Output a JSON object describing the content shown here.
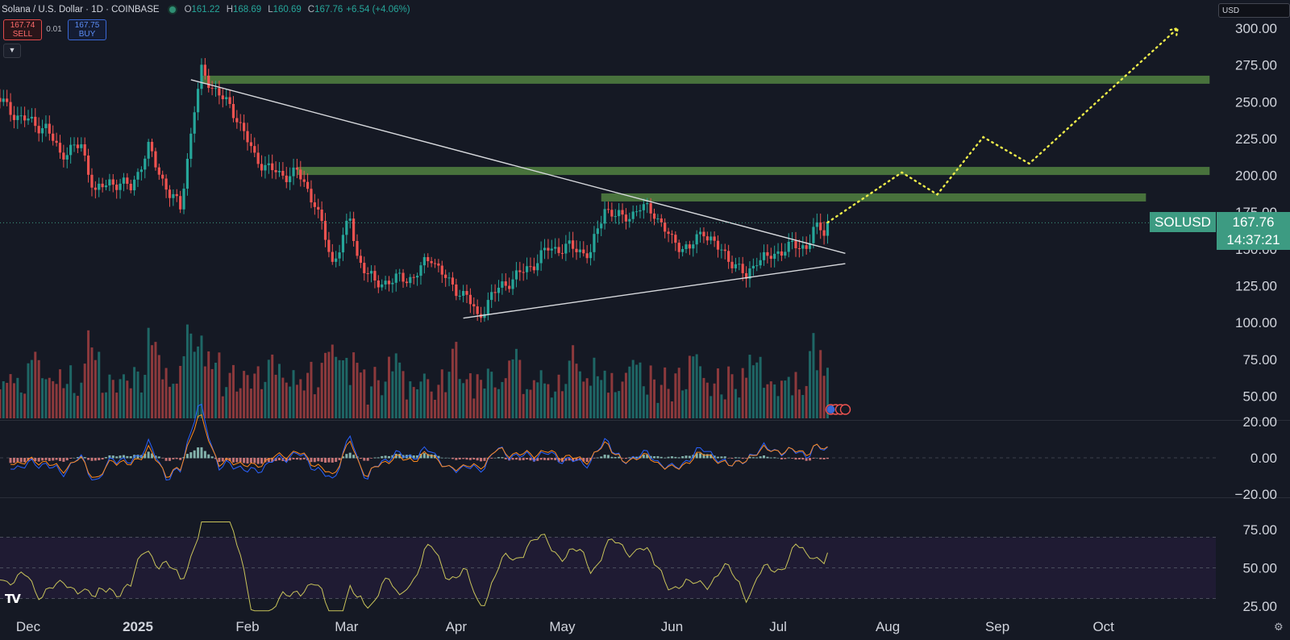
{
  "header": {
    "symbol": "Solana / U.S. Dollar · 1D · COINBASE",
    "o_label": "O",
    "o_value": "161.22",
    "h_label": "H",
    "h_value": "168.69",
    "l_label": "L",
    "l_value": "160.69",
    "c_label": "C",
    "c_value": "167.76",
    "change": "+6.54 (+4.06%)",
    "status_color": "#2f8f74"
  },
  "trade": {
    "sell_price": "167.74",
    "sell_label": "SELL",
    "spread": "0.01",
    "buy_price": "167.75",
    "buy_label": "BUY"
  },
  "toolbar": {
    "currency": "USD",
    "settings_icon": "gear-icon",
    "logo": "tradingview-logo-icon",
    "logo_text": "TV",
    "collapse_icon": "chevron-down-icon"
  },
  "price_badge": {
    "symbol": "SOLUSD",
    "price": "167.76",
    "countdown": "14:37:21",
    "color": "#3d9b82"
  },
  "chart_data": {
    "type": "candlestick",
    "price_axis_labels": [
      "300.00",
      "275.00",
      "250.00",
      "225.00",
      "200.00",
      "175.00",
      "150.00",
      "125.00",
      "100.00",
      "75.00",
      "50.00"
    ],
    "price_axis_values": [
      300,
      275,
      250,
      225,
      200,
      175,
      150,
      125,
      100,
      75,
      50
    ],
    "time_axis_labels": [
      {
        "label": "Dec",
        "date": "2024-12-01"
      },
      {
        "label": "2025",
        "date": "2025-01-01"
      },
      {
        "label": "Feb",
        "date": "2025-02-01"
      },
      {
        "label": "Mar",
        "date": "2025-03-01"
      },
      {
        "label": "Apr",
        "date": "2025-04-01"
      },
      {
        "label": "May",
        "date": "2025-05-01"
      },
      {
        "label": "Jun",
        "date": "2025-06-01"
      },
      {
        "label": "Jul",
        "date": "2025-07-01"
      },
      {
        "label": "Aug",
        "date": "2025-08-01"
      },
      {
        "label": "Sep",
        "date": "2025-09-01"
      },
      {
        "label": "Oct",
        "date": "2025-10-01"
      }
    ],
    "last_price": 167.76,
    "up_color": "#26a69a",
    "down_color": "#ef5350",
    "price_path": [
      [
        "2024-11-21",
        255
      ],
      [
        "2024-11-28",
        240
      ],
      [
        "2024-12-06",
        232
      ],
      [
        "2024-12-10",
        215
      ],
      [
        "2024-12-16",
        220
      ],
      [
        "2024-12-20",
        188
      ],
      [
        "2024-12-24",
        196
      ],
      [
        "2024-12-30",
        192
      ],
      [
        "2025-01-04",
        218
      ],
      [
        "2025-01-10",
        187
      ],
      [
        "2025-01-13",
        178
      ],
      [
        "2025-01-17",
        245
      ],
      [
        "2025-01-19",
        270
      ],
      [
        "2025-01-25",
        252
      ],
      [
        "2025-01-29",
        240
      ],
      [
        "2025-02-03",
        212
      ],
      [
        "2025-02-10",
        200
      ],
      [
        "2025-02-15",
        202
      ],
      [
        "2025-02-20",
        182
      ],
      [
        "2025-02-25",
        140
      ],
      [
        "2025-03-02",
        170
      ],
      [
        "2025-03-04",
        145
      ],
      [
        "2025-03-09",
        126
      ],
      [
        "2025-03-12",
        128
      ],
      [
        "2025-03-20",
        131
      ],
      [
        "2025-03-25",
        145
      ],
      [
        "2025-03-30",
        126
      ],
      [
        "2025-04-04",
        118
      ],
      [
        "2025-04-07",
        103
      ],
      [
        "2025-04-11",
        118
      ],
      [
        "2025-04-14",
        125
      ],
      [
        "2025-04-22",
        138
      ],
      [
        "2025-04-27",
        150
      ],
      [
        "2025-05-03",
        151
      ],
      [
        "2025-05-09",
        147
      ],
      [
        "2025-05-13",
        178
      ],
      [
        "2025-05-18",
        170
      ],
      [
        "2025-05-23",
        178
      ],
      [
        "2025-05-27",
        175
      ],
      [
        "2025-06-01",
        155
      ],
      [
        "2025-06-06",
        150
      ],
      [
        "2025-06-10",
        163
      ],
      [
        "2025-06-14",
        150
      ],
      [
        "2025-06-18",
        142
      ],
      [
        "2025-06-22",
        130
      ],
      [
        "2025-06-25",
        144
      ],
      [
        "2025-06-28",
        143
      ],
      [
        "2025-07-03",
        151
      ],
      [
        "2025-07-09",
        152
      ],
      [
        "2025-07-11",
        163
      ],
      [
        "2025-07-14",
        162
      ],
      [
        "2025-07-15",
        167.76
      ]
    ],
    "resistance_zones": [
      {
        "price": 265,
        "from": "2025-01-19",
        "to": "2025-10-31"
      },
      {
        "price": 203,
        "from": "2025-02-15",
        "to": "2025-10-31"
      },
      {
        "price": 185,
        "from": "2025-05-12",
        "to": "2025-10-13"
      }
    ],
    "triangle_lines": [
      {
        "from": [
          "2025-01-16",
          265
        ],
        "to": [
          "2025-07-20",
          147
        ]
      },
      {
        "from": [
          "2025-04-03",
          103
        ],
        "to": [
          "2025-07-20",
          140
        ]
      }
    ],
    "projection_path": [
      [
        "2025-07-15",
        168
      ],
      [
        "2025-08-05",
        202
      ],
      [
        "2025-08-15",
        187
      ],
      [
        "2025-08-28",
        226
      ],
      [
        "2025-09-10",
        208
      ],
      [
        "2025-10-22",
        300
      ]
    ],
    "macd": {
      "axis_labels": [
        "20.00",
        "0.00",
        "−20.00"
      ],
      "axis_values": [
        20,
        0,
        -20
      ]
    },
    "rsi": {
      "axis_labels": [
        "75.00",
        "50.00",
        "25.00"
      ],
      "axis_values": [
        75,
        50,
        25
      ],
      "upper_band": 70,
      "lower_band": 30,
      "line_color": "#c9c45a"
    }
  }
}
